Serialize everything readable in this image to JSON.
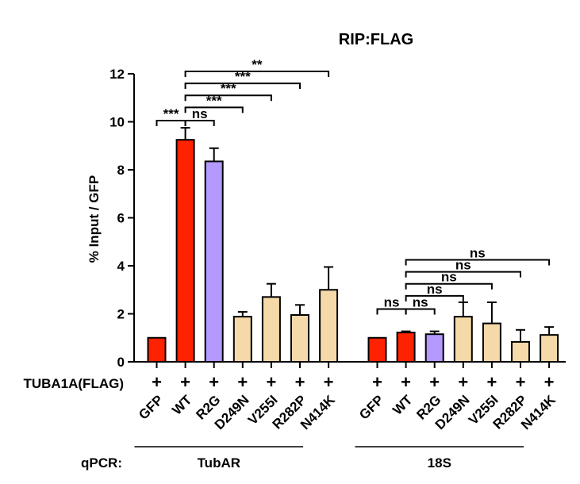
{
  "chart_data": {
    "type": "bar",
    "title": "RIP:FLAG",
    "ylabel": "% Input / GFP",
    "ylim": [
      0,
      12
    ],
    "yticks": [
      0,
      2,
      4,
      6,
      8,
      10,
      12
    ],
    "row_label": "TUBA1A(FLAG)",
    "row_marker": "+",
    "qpcr_label": "qPCR:",
    "colors": {
      "red": "#ff2200",
      "purple": "#b499ff",
      "tan": "#f6d9a8"
    },
    "groups": [
      {
        "name": "TubAR",
        "categories": [
          "GFP",
          "WT",
          "R2G",
          "D249N",
          "V255I",
          "R282P",
          "N414K"
        ],
        "values": [
          1.0,
          9.25,
          8.35,
          1.88,
          2.7,
          1.95,
          3.0
        ],
        "errors": [
          0.0,
          0.5,
          0.55,
          0.2,
          0.55,
          0.42,
          0.95
        ],
        "colors": [
          "red",
          "red",
          "purple",
          "tan",
          "tan",
          "tan",
          "tan"
        ]
      },
      {
        "name": "18S",
        "categories": [
          "GFP",
          "WT",
          "R2G",
          "D249N",
          "V255I",
          "R282P",
          "N414K"
        ],
        "values": [
          1.0,
          1.22,
          1.15,
          1.88,
          1.6,
          0.83,
          1.12
        ],
        "errors": [
          0.0,
          0.05,
          0.12,
          0.6,
          0.88,
          0.5,
          0.33
        ],
        "colors": [
          "red",
          "red",
          "purple",
          "tan",
          "tan",
          "tan",
          "tan"
        ]
      }
    ],
    "annotations": [
      {
        "group": 0,
        "from": 0,
        "to": 1,
        "y": 10.05,
        "label": "***"
      },
      {
        "group": 0,
        "from": 1,
        "to": 2,
        "y": 10.05,
        "label": "ns"
      },
      {
        "group": 0,
        "from": 1,
        "to": 3,
        "y": 10.6,
        "label": "***"
      },
      {
        "group": 0,
        "from": 1,
        "to": 4,
        "y": 11.1,
        "label": "***"
      },
      {
        "group": 0,
        "from": 1,
        "to": 5,
        "y": 11.6,
        "label": "***"
      },
      {
        "group": 0,
        "from": 1,
        "to": 6,
        "y": 12.1,
        "label": "**"
      },
      {
        "group": 1,
        "from": 0,
        "to": 1,
        "y": 2.2,
        "label": "ns"
      },
      {
        "group": 1,
        "from": 1,
        "to": 2,
        "y": 2.2,
        "label": "ns"
      },
      {
        "group": 1,
        "from": 1,
        "to": 3,
        "y": 2.75,
        "label": "ns"
      },
      {
        "group": 1,
        "from": 1,
        "to": 4,
        "y": 3.25,
        "label": "ns"
      },
      {
        "group": 1,
        "from": 1,
        "to": 5,
        "y": 3.75,
        "label": "ns"
      },
      {
        "group": 1,
        "from": 1,
        "to": 6,
        "y": 4.25,
        "label": "ns"
      }
    ]
  }
}
